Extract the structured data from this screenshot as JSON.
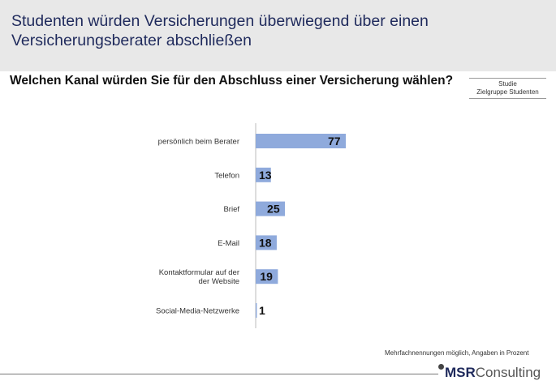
{
  "header": {
    "title": "Studenten würden Versicherungen überwiegend über einen Versicherungsberater abschließen"
  },
  "question": "Welchen Kanal würden Sie für den Abschluss einer Versicherung wählen?",
  "study": {
    "line1": "Studie",
    "line2": "Zielgruppe Studenten"
  },
  "footer": {
    "note": "Mehrfachnennungen möglich, Angaben in Prozent",
    "logo_bold": "MSR",
    "logo_rest": "Consulting"
  },
  "colors": {
    "bar": "#8faadc",
    "title": "#1f2a5c"
  },
  "chart_data": {
    "type": "bar",
    "orientation": "horizontal",
    "categories": [
      "persönlich beim Berater",
      "Telefon",
      "Brief",
      "E-Mail",
      "Kontaktformular auf der der Website",
      "Social-Media-Netzwerke"
    ],
    "category_lines": [
      [
        "persönlich beim Berater"
      ],
      [
        "Telefon"
      ],
      [
        "Brief"
      ],
      [
        "E-Mail"
      ],
      [
        "Kontaktformular auf der",
        "der Website"
      ],
      [
        "Social-Media-Netzwerke"
      ]
    ],
    "values": [
      77,
      13,
      25,
      18,
      19,
      1
    ],
    "unit": "%",
    "grid": false,
    "xlim": [
      0,
      100
    ]
  }
}
